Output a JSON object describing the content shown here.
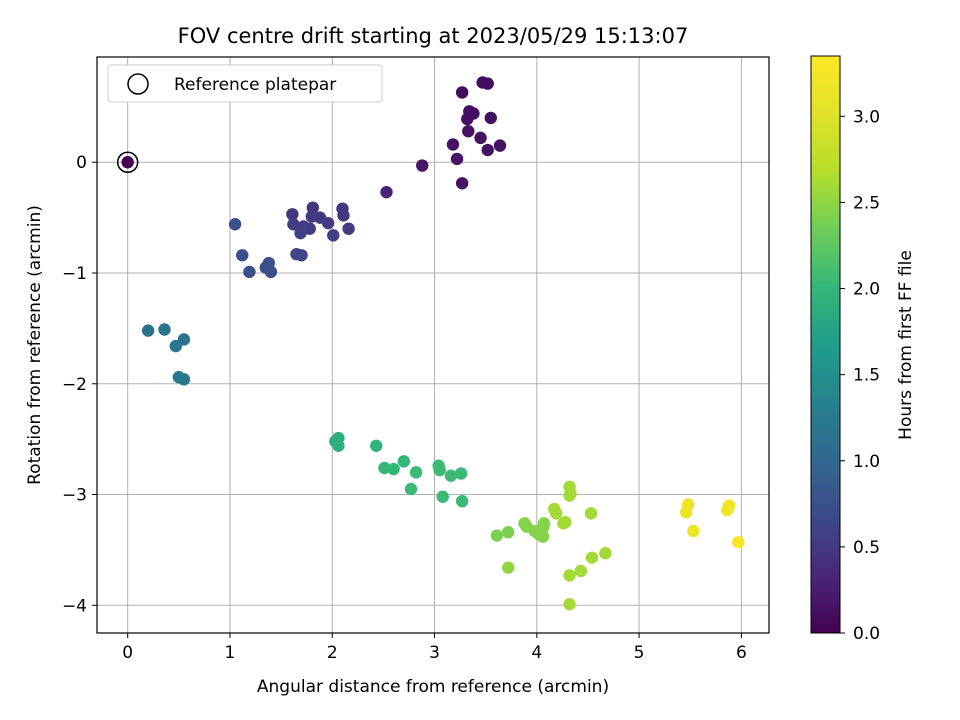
{
  "chart_data": {
    "type": "scatter",
    "title": "FOV centre drift starting at 2023/05/29 15:13:07",
    "xlabel": "Angular distance from reference (arcmin)",
    "ylabel": "Rotation from reference (arcmin)",
    "xlim": [
      -0.3,
      6.27
    ],
    "ylim": [
      -4.25,
      0.95
    ],
    "xticks": [
      0,
      1,
      2,
      3,
      4,
      5,
      6
    ],
    "yticks": [
      0,
      -1,
      -2,
      -3,
      -4
    ],
    "xtick_labels": [
      "0",
      "1",
      "2",
      "3",
      "4",
      "5",
      "6"
    ],
    "ytick_labels": [
      "0",
      "−1",
      "−2",
      "−3",
      "−4"
    ],
    "grid": true,
    "legend": {
      "label": "Reference platepar",
      "placement": "top-left"
    },
    "reference_point": {
      "x": 0,
      "y": 0
    },
    "colorbar": {
      "label": "Hours from first FF file",
      "range": [
        0,
        3.35
      ],
      "ticks": [
        0,
        0.5,
        1,
        1.5,
        2,
        2.5,
        3
      ],
      "tick_labels": [
        "0.0",
        "0.5",
        "1.0",
        "1.5",
        "2.0",
        "2.5",
        "3.0"
      ],
      "colormap": "viridis"
    },
    "points": [
      {
        "x": 0.0,
        "y": 0.0,
        "t": 0.0
      },
      {
        "x": 3.47,
        "y": 0.72,
        "t": 0.1
      },
      {
        "x": 3.52,
        "y": 0.71,
        "t": 0.1
      },
      {
        "x": 3.27,
        "y": 0.63,
        "t": 0.1
      },
      {
        "x": 3.34,
        "y": 0.46,
        "t": 0.12
      },
      {
        "x": 3.38,
        "y": 0.44,
        "t": 0.12
      },
      {
        "x": 3.32,
        "y": 0.39,
        "t": 0.12
      },
      {
        "x": 3.55,
        "y": 0.4,
        "t": 0.12
      },
      {
        "x": 3.33,
        "y": 0.28,
        "t": 0.14
      },
      {
        "x": 3.45,
        "y": 0.22,
        "t": 0.14
      },
      {
        "x": 3.18,
        "y": 0.16,
        "t": 0.14
      },
      {
        "x": 3.64,
        "y": 0.15,
        "t": 0.14
      },
      {
        "x": 3.52,
        "y": 0.11,
        "t": 0.14
      },
      {
        "x": 3.22,
        "y": 0.03,
        "t": 0.16
      },
      {
        "x": 2.88,
        "y": -0.03,
        "t": 0.18
      },
      {
        "x": 3.27,
        "y": -0.19,
        "t": 0.16
      },
      {
        "x": 2.53,
        "y": -0.27,
        "t": 0.3
      },
      {
        "x": 1.81,
        "y": -0.41,
        "t": 0.5
      },
      {
        "x": 2.1,
        "y": -0.42,
        "t": 0.5
      },
      {
        "x": 1.61,
        "y": -0.47,
        "t": 0.52
      },
      {
        "x": 2.11,
        "y": -0.48,
        "t": 0.52
      },
      {
        "x": 1.8,
        "y": -0.49,
        "t": 0.52
      },
      {
        "x": 1.88,
        "y": -0.5,
        "t": 0.52
      },
      {
        "x": 1.96,
        "y": -0.55,
        "t": 0.55
      },
      {
        "x": 1.62,
        "y": -0.56,
        "t": 0.55
      },
      {
        "x": 1.72,
        "y": -0.58,
        "t": 0.55
      },
      {
        "x": 1.78,
        "y": -0.6,
        "t": 0.55
      },
      {
        "x": 2.16,
        "y": -0.6,
        "t": 0.55
      },
      {
        "x": 1.69,
        "y": -0.64,
        "t": 0.58
      },
      {
        "x": 2.01,
        "y": -0.66,
        "t": 0.58
      },
      {
        "x": 1.05,
        "y": -0.56,
        "t": 0.75
      },
      {
        "x": 1.65,
        "y": -0.83,
        "t": 0.65
      },
      {
        "x": 1.7,
        "y": -0.84,
        "t": 0.65
      },
      {
        "x": 1.12,
        "y": -0.84,
        "t": 0.75
      },
      {
        "x": 1.38,
        "y": -0.91,
        "t": 0.75
      },
      {
        "x": 1.35,
        "y": -0.95,
        "t": 0.75
      },
      {
        "x": 1.4,
        "y": -0.99,
        "t": 0.75
      },
      {
        "x": 1.19,
        "y": -0.99,
        "t": 0.75
      },
      {
        "x": 0.2,
        "y": -1.52,
        "t": 1.15
      },
      {
        "x": 0.36,
        "y": -1.51,
        "t": 1.15
      },
      {
        "x": 0.55,
        "y": -1.6,
        "t": 1.15
      },
      {
        "x": 0.47,
        "y": -1.66,
        "t": 1.15
      },
      {
        "x": 0.5,
        "y": -1.94,
        "t": 1.2
      },
      {
        "x": 0.55,
        "y": -1.96,
        "t": 1.2
      },
      {
        "x": 2.06,
        "y": -2.49,
        "t": 1.9
      },
      {
        "x": 2.03,
        "y": -2.52,
        "t": 1.9
      },
      {
        "x": 2.06,
        "y": -2.56,
        "t": 1.9
      },
      {
        "x": 2.43,
        "y": -2.56,
        "t": 1.95
      },
      {
        "x": 2.7,
        "y": -2.7,
        "t": 2.0
      },
      {
        "x": 2.51,
        "y": -2.76,
        "t": 2.0
      },
      {
        "x": 2.6,
        "y": -2.77,
        "t": 2.0
      },
      {
        "x": 3.04,
        "y": -2.74,
        "t": 2.05
      },
      {
        "x": 3.05,
        "y": -2.78,
        "t": 2.05
      },
      {
        "x": 2.82,
        "y": -2.8,
        "t": 2.05
      },
      {
        "x": 3.26,
        "y": -2.81,
        "t": 2.05
      },
      {
        "x": 3.16,
        "y": -2.83,
        "t": 2.05
      },
      {
        "x": 2.77,
        "y": -2.95,
        "t": 2.05
      },
      {
        "x": 3.08,
        "y": -3.02,
        "t": 2.05
      },
      {
        "x": 3.27,
        "y": -3.06,
        "t": 2.05
      },
      {
        "x": 4.32,
        "y": -2.93,
        "t": 2.6
      },
      {
        "x": 4.33,
        "y": -2.99,
        "t": 2.6
      },
      {
        "x": 4.32,
        "y": -3.01,
        "t": 2.6
      },
      {
        "x": 4.17,
        "y": -3.13,
        "t": 2.6
      },
      {
        "x": 4.19,
        "y": -3.17,
        "t": 2.6
      },
      {
        "x": 4.53,
        "y": -3.17,
        "t": 2.6
      },
      {
        "x": 4.28,
        "y": -3.25,
        "t": 2.6
      },
      {
        "x": 4.26,
        "y": -3.26,
        "t": 2.6
      },
      {
        "x": 3.88,
        "y": -3.26,
        "t": 2.45
      },
      {
        "x": 4.07,
        "y": -3.26,
        "t": 2.45
      },
      {
        "x": 3.9,
        "y": -3.29,
        "t": 2.45
      },
      {
        "x": 4.06,
        "y": -3.3,
        "t": 2.45
      },
      {
        "x": 3.98,
        "y": -3.33,
        "t": 2.45
      },
      {
        "x": 3.72,
        "y": -3.34,
        "t": 2.4
      },
      {
        "x": 4.02,
        "y": -3.36,
        "t": 2.45
      },
      {
        "x": 3.61,
        "y": -3.37,
        "t": 2.4
      },
      {
        "x": 4.06,
        "y": -3.38,
        "t": 2.45
      },
      {
        "x": 4.67,
        "y": -3.53,
        "t": 2.6
      },
      {
        "x": 4.54,
        "y": -3.57,
        "t": 2.6
      },
      {
        "x": 3.72,
        "y": -3.66,
        "t": 2.5
      },
      {
        "x": 4.43,
        "y": -3.69,
        "t": 2.6
      },
      {
        "x": 4.32,
        "y": -3.73,
        "t": 2.6
      },
      {
        "x": 4.32,
        "y": -3.99,
        "t": 2.6
      },
      {
        "x": 5.48,
        "y": -3.09,
        "t": 3.15
      },
      {
        "x": 5.46,
        "y": -3.16,
        "t": 3.15
      },
      {
        "x": 5.53,
        "y": -3.33,
        "t": 3.15
      },
      {
        "x": 5.88,
        "y": -3.1,
        "t": 3.2
      },
      {
        "x": 5.86,
        "y": -3.14,
        "t": 3.2
      },
      {
        "x": 5.97,
        "y": -3.43,
        "t": 3.3
      }
    ]
  }
}
